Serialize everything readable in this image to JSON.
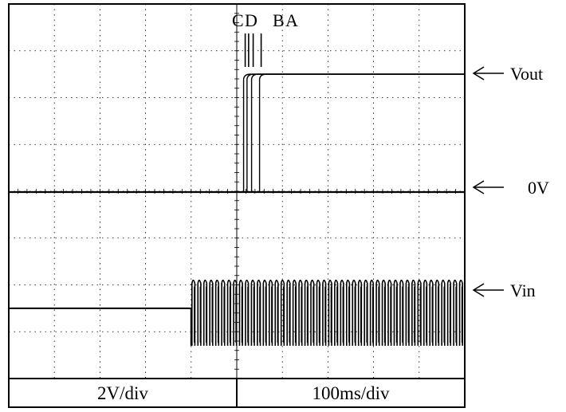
{
  "chart_data": {
    "type": "line",
    "title": "",
    "divisions": {
      "x": 10,
      "y": 8
    },
    "grid": true,
    "series": [
      {
        "name": "Vout",
        "kind": "step",
        "level_div": 2.5,
        "zero_div": 0
      },
      {
        "name": "Vin",
        "kind": "square-wave",
        "initial_level_div": -2.5,
        "high_div": -1.9,
        "low_div": -3.3,
        "start_div": 4,
        "cycles": 46
      }
    ],
    "step_labels": [
      "C",
      "D",
      "B",
      "A"
    ],
    "step_times_div": [
      10.3,
      10.45,
      10.65,
      11.0
    ],
    "markers": [
      "Vout",
      "0V",
      "Vin"
    ],
    "scale_labels": {
      "vertical": "2V/div",
      "horizontal": "100ms/div"
    }
  },
  "colors": {
    "trace": "#000000",
    "grid": "#000000",
    "background": "#ffffff"
  }
}
